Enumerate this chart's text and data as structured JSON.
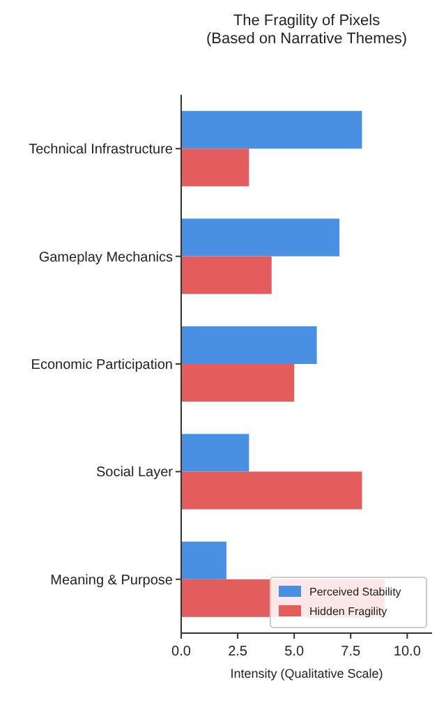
{
  "chart_data": {
    "type": "bar",
    "orientation": "horizontal",
    "title": "The Fragility of Pixels\n(Based on Narrative Themes)",
    "xlabel": "Intensity (Qualitative Scale)",
    "categories": [
      "Technical Infrastructure",
      "Gameplay Mechanics",
      "Economic Participation",
      "Social Layer",
      "Meaning & Purpose"
    ],
    "series": [
      {
        "name": "Perceived Stability",
        "color": "#4a90e2",
        "values": [
          8,
          7,
          6,
          3,
          2
        ]
      },
      {
        "name": "Hidden Fragility",
        "color": "#e35d5d",
        "values": [
          3,
          4,
          5,
          8,
          9
        ]
      }
    ],
    "xlim": [
      0,
      11.1
    ],
    "xticks": [
      {
        "value": 0,
        "label": "0.0"
      },
      {
        "value": 2.5,
        "label": "2.5"
      },
      {
        "value": 5,
        "label": "5.0"
      },
      {
        "value": 7.5,
        "label": "7.5"
      },
      {
        "value": 10,
        "label": "10.0"
      }
    ],
    "legend": "bottom right"
  }
}
